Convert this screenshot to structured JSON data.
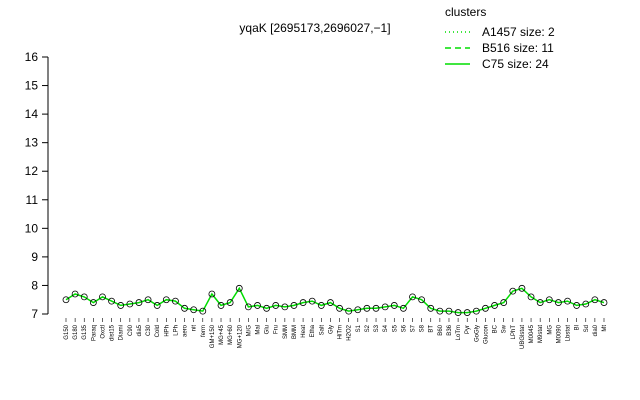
{
  "chart_data": {
    "type": "line",
    "title": "yqaK [2695173,2696027,−1]",
    "categories": [
      "G150",
      "G180",
      "G135",
      "Paraq",
      "Oxctl",
      "dist15",
      "Diami",
      "C90",
      "dia5",
      "C30",
      "Cold",
      "HPh",
      "LPh",
      "aero",
      "nit",
      "ferm",
      "GM+150",
      "MG+45",
      "MG+60",
      "MG+120",
      "M/G",
      "Mal",
      "Glu",
      "Fru",
      "SMM",
      "BMM",
      "Heat",
      "Etha",
      "Salt",
      "Gly",
      "HiTm",
      "H2O2",
      "S1",
      "S2",
      "S3",
      "S4",
      "S5",
      "S6",
      "S7",
      "S8",
      "BT",
      "B60",
      "B36",
      "LoTm",
      "Pyr",
      "GoGly",
      "Glucon",
      "BC",
      "Sw",
      "LPhT",
      "UBGlstat",
      "M0045",
      "M9stat",
      "MG",
      "M0090",
      "Lbstat",
      "Bl",
      "Sd",
      "dia0",
      "Mt"
    ],
    "values": [
      7.5,
      7.7,
      7.6,
      7.4,
      7.6,
      7.45,
      7.3,
      7.35,
      7.4,
      7.5,
      7.3,
      7.5,
      7.45,
      7.2,
      7.15,
      7.1,
      7.7,
      7.3,
      7.4,
      7.9,
      7.25,
      7.3,
      7.2,
      7.3,
      7.25,
      7.3,
      7.4,
      7.45,
      7.3,
      7.4,
      7.2,
      7.1,
      7.15,
      7.2,
      7.2,
      7.25,
      7.3,
      7.2,
      7.6,
      7.5,
      7.2,
      7.1,
      7.1,
      7.05,
      7.05,
      7.1,
      7.2,
      7.3,
      7.4,
      7.8,
      7.9,
      7.6,
      7.4,
      7.5,
      7.4,
      7.45,
      7.3,
      7.35,
      7.5,
      7.4
    ],
    "color": "#00dd00",
    "marker_color": "#000000",
    "ylim": [
      7,
      16
    ],
    "yticks": [
      7,
      8,
      9,
      10,
      11,
      12,
      13,
      14,
      15,
      16
    ],
    "legend": {
      "title": "clusters",
      "position": "top-right",
      "color": "#00dd00",
      "entries": [
        {
          "label": "A1457 size: 2",
          "dash": "dotted"
        },
        {
          "label": "B516 size: 11",
          "dash": "dashed"
        },
        {
          "label": "C75 size: 24",
          "dash": "solid"
        }
      ]
    }
  }
}
